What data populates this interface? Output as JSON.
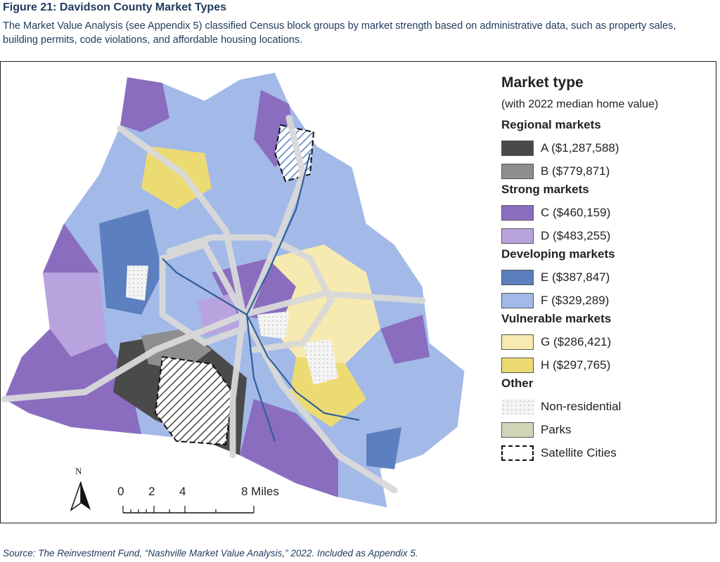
{
  "figure": {
    "title": "Figure 21: Davidson County Market Types",
    "description": "The Market Value Analysis (see Appendix 5) classified Census block groups by market strength based on administrative data, such as property sales, building permits, code violations, and affordable housing locations.",
    "source": "Source: The Reinvestment Fund, “Nashville Market Value Analysis,” 2022. Included as Appendix 5."
  },
  "legend": {
    "title": "Market type",
    "subtitle": "(with 2022 median home value)",
    "groups": [
      {
        "name": "Regional markets",
        "items": [
          {
            "label": "A ($1,287,588)",
            "color": "#4a4a4a"
          },
          {
            "label": "B ($779,871)",
            "color": "#8e8e8e"
          }
        ]
      },
      {
        "name": "Strong markets",
        "items": [
          {
            "label": "C ($460,159)",
            "color": "#8a6dbf"
          },
          {
            "label": "D ($483,255)",
            "color": "#b9a3df"
          }
        ]
      },
      {
        "name": "Developing markets",
        "items": [
          {
            "label": "E ($387,847)",
            "color": "#5b7fbf"
          },
          {
            "label": "F ($329,289)",
            "color": "#a3b9e8"
          }
        ]
      },
      {
        "name": "Vulnerable markets",
        "items": [
          {
            "label": "G ($286,421)",
            "color": "#f6eab0"
          },
          {
            "label": "H ($297,765)",
            "color": "#ecdb72"
          }
        ]
      },
      {
        "name": "Other",
        "items": [
          {
            "label": "Non-residential",
            "color": "#f2f2f2"
          },
          {
            "label": "Parks",
            "color": "#cfd6b8"
          },
          {
            "label": "Satellite Cities",
            "color": "#ffffff"
          }
        ]
      }
    ]
  },
  "scale": {
    "ticks": [
      "0",
      "2",
      "4",
      "8 Miles"
    ]
  },
  "north_label": "N"
}
